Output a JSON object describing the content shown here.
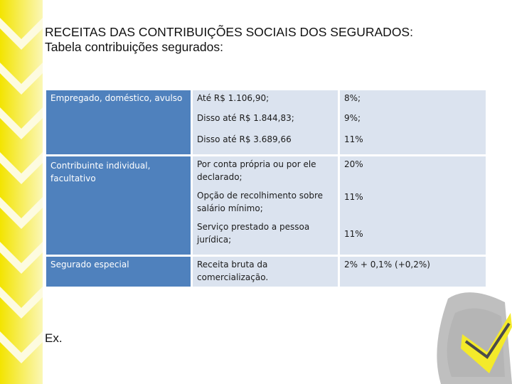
{
  "slide": {
    "title_line1": "RECEITAS DAS CONTRIBUIÇÕES SOCIAIS DOS SEGURADOS:",
    "title_line2": "Tabela contribuições segurados:",
    "footer_text": "Ex."
  },
  "table": {
    "groups": [
      {
        "category": "Empregado, doméstico, avulso",
        "rows": [
          {
            "condition": "Até R$ 1.106,90;",
            "rate": "8%;"
          },
          {
            "condition": "Disso até R$ 1.844,83;",
            "rate": "9%;"
          },
          {
            "condition": "Disso até R$ 3.689,66",
            "rate": "11%"
          }
        ]
      },
      {
        "category": "Contribuinte individual, facultativo",
        "rows": [
          {
            "condition": "Por conta própria ou por ele declarado;",
            "rate": "20%"
          },
          {
            "condition": "Opção de recolhimento sobre salário mínimo;",
            "rate": "11%"
          },
          {
            "condition": "Serviço prestado a pessoa jurídica;",
            "rate": "11%"
          }
        ]
      },
      {
        "category": "Segurado especial",
        "rows": [
          {
            "condition": "Receita bruta da comercialização.",
            "rate": "2% + 0,1% (+0,2%)"
          }
        ]
      }
    ]
  },
  "colors": {
    "chevron": "#f5e600",
    "header_column": "#4f81bd",
    "body_column": "#dbe3ef"
  }
}
